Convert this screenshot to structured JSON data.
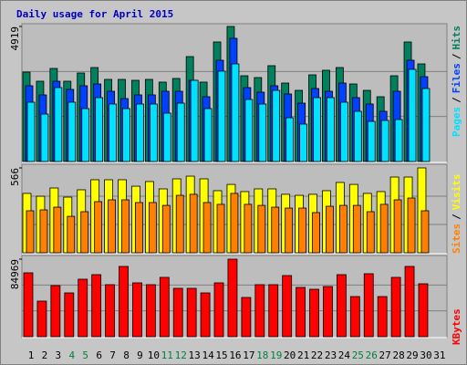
{
  "title": "Daily usage for April 2015",
  "chart_data": {
    "type": "bar",
    "categories": [
      "1",
      "2",
      "3",
      "4",
      "5",
      "6",
      "7",
      "8",
      "9",
      "10",
      "11",
      "12",
      "13",
      "14",
      "15",
      "16",
      "17",
      "18",
      "19",
      "20",
      "21",
      "22",
      "23",
      "24",
      "25",
      "26",
      "27",
      "28",
      "29",
      "30",
      "31"
    ],
    "category_colors": [
      "#000000",
      "#000000",
      "#000000",
      "#008040",
      "#008040",
      "#000000",
      "#000000",
      "#000000",
      "#000000",
      "#000000",
      "#008040",
      "#008040",
      "#000000",
      "#000000",
      "#000000",
      "#000000",
      "#000000",
      "#008040",
      "#008040",
      "#000000",
      "#000000",
      "#000000",
      "#000000",
      "#000000",
      "#008040",
      "#008040",
      "#000000",
      "#000000",
      "#000000",
      "#000000",
      "#000000"
    ],
    "separator": "/",
    "panels": [
      {
        "ylim": [
          0,
          4919
        ],
        "yticks": [
          4919
        ],
        "series": [
          {
            "name": "Hits",
            "color": "#00805c",
            "values": [
              3257,
              2925,
              3390,
              2925,
              3224,
              3423,
              2991,
              2991,
              2958,
              2991,
              2892,
              3025,
              3822,
              2892,
              4354,
              4919,
              3124,
              3058,
              3490,
              2858,
              2592,
              3157,
              3324,
              3423,
              2825,
              2592,
              2360,
              3124,
              4354,
              3556,
              null
            ]
          },
          {
            "name": "Files",
            "color": "#0040ff",
            "values": [
              2759,
              2426,
              2925,
              2626,
              2759,
              2825,
              2559,
              2293,
              2426,
              2426,
              2559,
              2559,
              2958,
              2360,
              3689,
              4487,
              2692,
              2526,
              2759,
              2460,
              2127,
              2659,
              2559,
              2858,
              2327,
              2094,
              1828,
              2559,
              3689,
              3091,
              null
            ]
          },
          {
            "name": "Pages",
            "color": "#00e0ff",
            "values": [
              2160,
              1728,
              2692,
              2160,
              1928,
              2327,
              2094,
              1928,
              2094,
              2094,
              1762,
              2127,
              2958,
              1928,
              3291,
              3556,
              2260,
              2094,
              2592,
              1595,
              1363,
              2327,
              2327,
              2160,
              1828,
              1462,
              1496,
              1529,
              3357,
              2659,
              null
            ]
          }
        ]
      },
      {
        "ylim": [
          0,
          566
        ],
        "yticks": [
          566
        ],
        "series": [
          {
            "name": "Visits",
            "color": "#ffff00",
            "values": [
              396,
              377,
              432,
              371,
              420,
              487,
              487,
              487,
              444,
              475,
              426,
              493,
              511,
              493,
              414,
              456,
              408,
              426,
              426,
              390,
              383,
              390,
              414,
              469,
              456,
              396,
              408,
              505,
              505,
              566,
              null
            ]
          },
          {
            "name": "Sites",
            "color": "#ff8000",
            "values": [
              280,
              286,
              304,
              243,
              274,
              341,
              353,
              353,
              335,
              335,
              316,
              383,
              390,
              335,
              323,
              396,
              323,
              316,
              304,
              298,
              298,
              268,
              310,
              316,
              316,
              274,
              323,
              353,
              365,
              280,
              null
            ]
          }
        ]
      },
      {
        "ylim": [
          0,
          84969
        ],
        "yticks": [
          84969
        ],
        "series": [
          {
            "name": "KBytes",
            "color": "#ff0000",
            "values": [
              70000,
              39000,
              56000,
              48000,
              63000,
              68000,
              57000,
              77000,
              59000,
              57000,
              65000,
              53000,
              53000,
              48000,
              59000,
              84969,
              43000,
              57000,
              57000,
              67000,
              54000,
              52000,
              55000,
              68000,
              44000,
              69000,
              44000,
              65000,
              77000,
              58000,
              null
            ]
          }
        ]
      }
    ]
  }
}
